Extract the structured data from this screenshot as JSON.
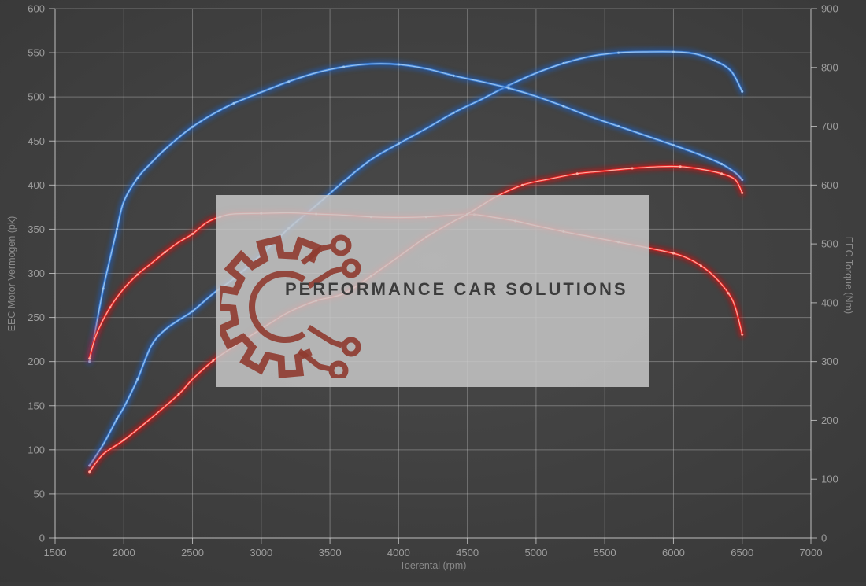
{
  "watermark": {
    "brand": "PERFORMANCE CAR SOLUTIONS"
  },
  "colors": {
    "background_center": "#4a4a4a",
    "background_edge": "#2b2b2b",
    "grid": "rgba(205,205,205,0.38)",
    "tick_text": "#9d9d9d",
    "axis_title_text": "#8a8a8a",
    "blue_glow": "#1e5fc0",
    "blue_main": "#3c7cd0",
    "blue_core": "#9cc6f0",
    "red_glow": "#cc1111",
    "red_main": "#e42222",
    "red_core": "#ffb3a6",
    "watermark_bg": "rgba(201,201,201,0.84)",
    "logo": "#8f3b30",
    "brand_text": "#3c3c3c"
  },
  "chart_data": {
    "type": "line",
    "title": "",
    "xlabel": "Toerental (rpm)",
    "ylabel_left": "EEC Motor Vermogen (pk)",
    "ylabel_right": "EEC Torque (Nm)",
    "xlim": [
      1500,
      7000
    ],
    "ylim_left": [
      0,
      600
    ],
    "ylim_right": [
      0,
      900
    ],
    "x_ticks": [
      1500,
      2000,
      2500,
      3000,
      3500,
      4000,
      4500,
      5000,
      5500,
      6000,
      6500,
      7000
    ],
    "y_left_ticks": [
      0,
      50,
      100,
      150,
      200,
      250,
      300,
      350,
      400,
      450,
      500,
      550,
      600
    ],
    "y_right_ticks": [
      0,
      100,
      200,
      300,
      400,
      500,
      600,
      700,
      800,
      900
    ],
    "grid": true,
    "legend": "none",
    "series": [
      {
        "name": "power-blue",
        "unit": "pk",
        "axis": "left",
        "color_key": "blue",
        "points": [
          [
            1750,
            82
          ],
          [
            1850,
            106
          ],
          [
            1950,
            135
          ],
          [
            2000,
            148
          ],
          [
            2100,
            180
          ],
          [
            2200,
            218
          ],
          [
            2300,
            236
          ],
          [
            2400,
            247
          ],
          [
            2500,
            257
          ],
          [
            2650,
            277
          ],
          [
            2800,
            294
          ],
          [
            3000,
            321
          ],
          [
            3200,
            351
          ],
          [
            3400,
            377
          ],
          [
            3600,
            404
          ],
          [
            3800,
            429
          ],
          [
            4000,
            447
          ],
          [
            4200,
            464
          ],
          [
            4400,
            482
          ],
          [
            4600,
            497
          ],
          [
            4800,
            513
          ],
          [
            5000,
            527
          ],
          [
            5200,
            538
          ],
          [
            5400,
            546
          ],
          [
            5600,
            550
          ],
          [
            5800,
            551
          ],
          [
            6000,
            551
          ],
          [
            6150,
            549
          ],
          [
            6300,
            541
          ],
          [
            6420,
            529
          ],
          [
            6500,
            506
          ]
        ]
      },
      {
        "name": "torque-blue",
        "unit": "Nm",
        "axis": "right",
        "color_key": "blue",
        "points": [
          [
            1750,
            300
          ],
          [
            1800,
            362
          ],
          [
            1850,
            424
          ],
          [
            1900,
            475
          ],
          [
            1950,
            525
          ],
          [
            2000,
            572
          ],
          [
            2100,
            612
          ],
          [
            2200,
            638
          ],
          [
            2300,
            661
          ],
          [
            2400,
            681
          ],
          [
            2500,
            699
          ],
          [
            2650,
            721
          ],
          [
            2800,
            739
          ],
          [
            3000,
            758
          ],
          [
            3200,
            776
          ],
          [
            3400,
            791
          ],
          [
            3600,
            801
          ],
          [
            3800,
            806
          ],
          [
            4000,
            805
          ],
          [
            4200,
            798
          ],
          [
            4400,
            786
          ],
          [
            4600,
            776
          ],
          [
            4800,
            765
          ],
          [
            5000,
            751
          ],
          [
            5200,
            734
          ],
          [
            5400,
            716
          ],
          [
            5600,
            700
          ],
          [
            5800,
            684
          ],
          [
            6000,
            668
          ],
          [
            6200,
            651
          ],
          [
            6350,
            636
          ],
          [
            6450,
            621
          ],
          [
            6500,
            609
          ]
        ]
      },
      {
        "name": "torque-red",
        "unit": "Nm",
        "axis": "right",
        "color_key": "red",
        "points": [
          [
            1750,
            305
          ],
          [
            1800,
            346
          ],
          [
            1900,
            392
          ],
          [
            2000,
            424
          ],
          [
            2100,
            448
          ],
          [
            2200,
            467
          ],
          [
            2300,
            486
          ],
          [
            2400,
            503
          ],
          [
            2500,
            517
          ],
          [
            2600,
            536
          ],
          [
            2700,
            546
          ],
          [
            2800,
            551
          ],
          [
            3000,
            552
          ],
          [
            3200,
            553
          ],
          [
            3400,
            551
          ],
          [
            3600,
            549
          ],
          [
            3800,
            546
          ],
          [
            4000,
            545
          ],
          [
            4200,
            546
          ],
          [
            4400,
            549
          ],
          [
            4550,
            550
          ],
          [
            4700,
            545
          ],
          [
            4850,
            539
          ],
          [
            5000,
            531
          ],
          [
            5200,
            521
          ],
          [
            5400,
            512
          ],
          [
            5600,
            503
          ],
          [
            5800,
            494
          ],
          [
            6000,
            484
          ],
          [
            6100,
            476
          ],
          [
            6200,
            463
          ],
          [
            6300,
            444
          ],
          [
            6400,
            416
          ],
          [
            6450,
            392
          ],
          [
            6500,
            346
          ]
        ]
      },
      {
        "name": "power-red",
        "unit": "pk",
        "axis": "left",
        "color_key": "red",
        "points": [
          [
            1750,
            75
          ],
          [
            1850,
            95
          ],
          [
            2000,
            111
          ],
          [
            2200,
            136
          ],
          [
            2400,
            163
          ],
          [
            2500,
            180
          ],
          [
            2650,
            201
          ],
          [
            2800,
            217
          ],
          [
            3000,
            237
          ],
          [
            3200,
            256
          ],
          [
            3400,
            269
          ],
          [
            3600,
            277
          ],
          [
            3800,
            297
          ],
          [
            4000,
            319
          ],
          [
            4200,
            341
          ],
          [
            4400,
            359
          ],
          [
            4500,
            367
          ],
          [
            4700,
            386
          ],
          [
            4900,
            400
          ],
          [
            5100,
            407
          ],
          [
            5300,
            413
          ],
          [
            5500,
            416
          ],
          [
            5700,
            419
          ],
          [
            5900,
            421
          ],
          [
            6050,
            421
          ],
          [
            6200,
            418
          ],
          [
            6350,
            413
          ],
          [
            6450,
            406
          ],
          [
            6500,
            391
          ]
        ]
      }
    ]
  }
}
